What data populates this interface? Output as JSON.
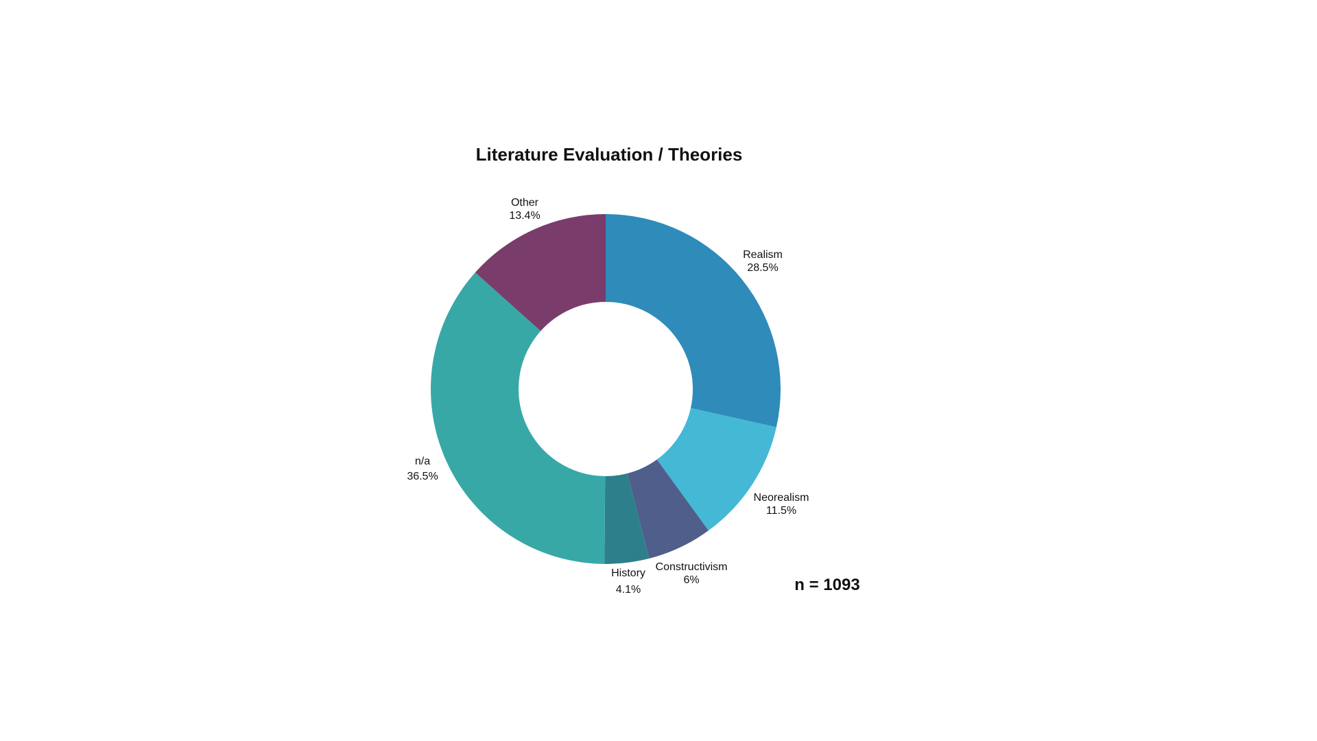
{
  "chart_data": {
    "type": "pie",
    "variant": "donut",
    "title": "Literature Evaluation / Theories",
    "annotation": "n = 1093",
    "start_angle": "top",
    "direction": "clockwise",
    "slices": [
      {
        "label": "Realism",
        "value": 28.5,
        "display": "28.5%",
        "color": "#2E8BBA"
      },
      {
        "label": "Neorealism",
        "value": 11.5,
        "display": "11.5%",
        "color": "#45B8D6"
      },
      {
        "label": "Constructivism",
        "value": 6,
        "display": "6%",
        "color": "#4F5E8A"
      },
      {
        "label": "History",
        "value": 4.1,
        "display": "4.1%",
        "color": "#2E7F8C"
      },
      {
        "label": "n/a",
        "value": 36.5,
        "display": "36.5%",
        "color": "#38A8A7"
      },
      {
        "label": "Other",
        "value": 13.4,
        "display": "13.4%",
        "color": "#7A3C6B"
      }
    ]
  }
}
